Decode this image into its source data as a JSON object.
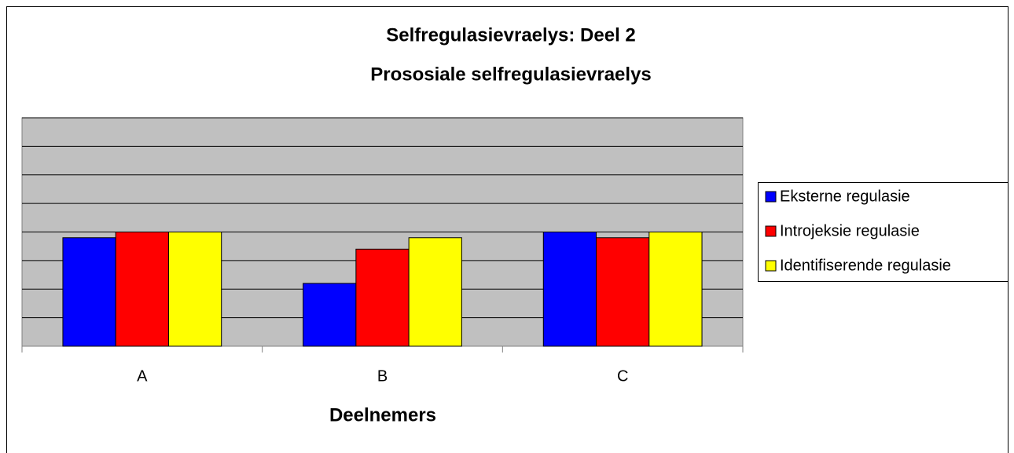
{
  "chart_data": {
    "type": "bar",
    "title": "Selfregulasievraelys:  Deel 2",
    "subtitle": "Prososiale selfregulasievraelys",
    "x_label": "Deelnemers",
    "categories": [
      "A",
      "B",
      "C"
    ],
    "series": [
      {
        "name": "Eksterne regulasie",
        "color": "#0000ff",
        "values": [
          3.8,
          2.2,
          4
        ]
      },
      {
        "name": "Introjeksie regulasie",
        "color": "#ff0000",
        "values": [
          4,
          3.4,
          3.8
        ]
      },
      {
        "name": "Identifiserende regulasie",
        "color": "#ffff00",
        "values": [
          4,
          3.8,
          4
        ]
      }
    ],
    "ylim": [
      0,
      8
    ],
    "yticks": [
      0,
      1,
      2,
      3,
      4,
      5,
      6,
      7,
      8
    ],
    "grid": true,
    "legend": "right"
  }
}
